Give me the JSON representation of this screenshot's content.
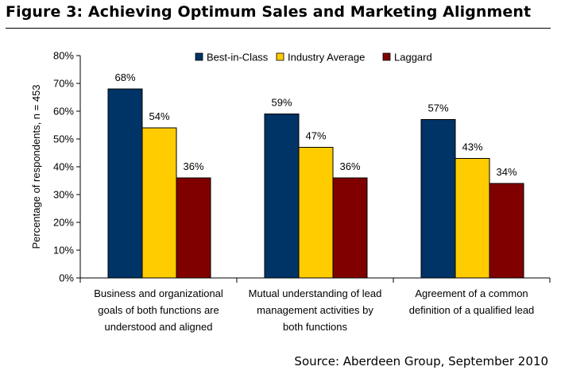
{
  "figure": {
    "title": "Figure 3: Achieving Optimum Sales and Marketing Alignment",
    "source": "Source: Aberdeen Group, September 2010"
  },
  "chart_data": {
    "type": "bar",
    "title": "",
    "xlabel": "",
    "ylabel": "Percentage of respondents, n = 453",
    "ylim": [
      0,
      80
    ],
    "yticks": [
      0,
      10,
      20,
      30,
      40,
      50,
      60,
      70,
      80
    ],
    "ytick_labels": [
      "0%",
      "10%",
      "20%",
      "30%",
      "40%",
      "50%",
      "60%",
      "70%",
      "80%"
    ],
    "grid": false,
    "legend_position": "top-right",
    "categories": [
      [
        "Business and organizational",
        "goals of both functions are",
        "understood and aligned"
      ],
      [
        "Mutual understanding of lead",
        "management activities by",
        "both functions"
      ],
      [
        "Agreement of a common",
        "definition of a qualified lead"
      ]
    ],
    "series": [
      {
        "name": "Best-in-Class",
        "color": "#003366",
        "values": [
          68,
          59,
          57
        ],
        "labels": [
          "68%",
          "59%",
          "57%"
        ]
      },
      {
        "name": "Industry Average",
        "color": "#FFCC00",
        "values": [
          54,
          47,
          43
        ],
        "labels": [
          "54%",
          "47%",
          "43%"
        ]
      },
      {
        "name": "Laggard",
        "color": "#800000",
        "values": [
          36,
          36,
          34
        ],
        "labels": [
          "36%",
          "36%",
          "34%"
        ]
      }
    ]
  }
}
